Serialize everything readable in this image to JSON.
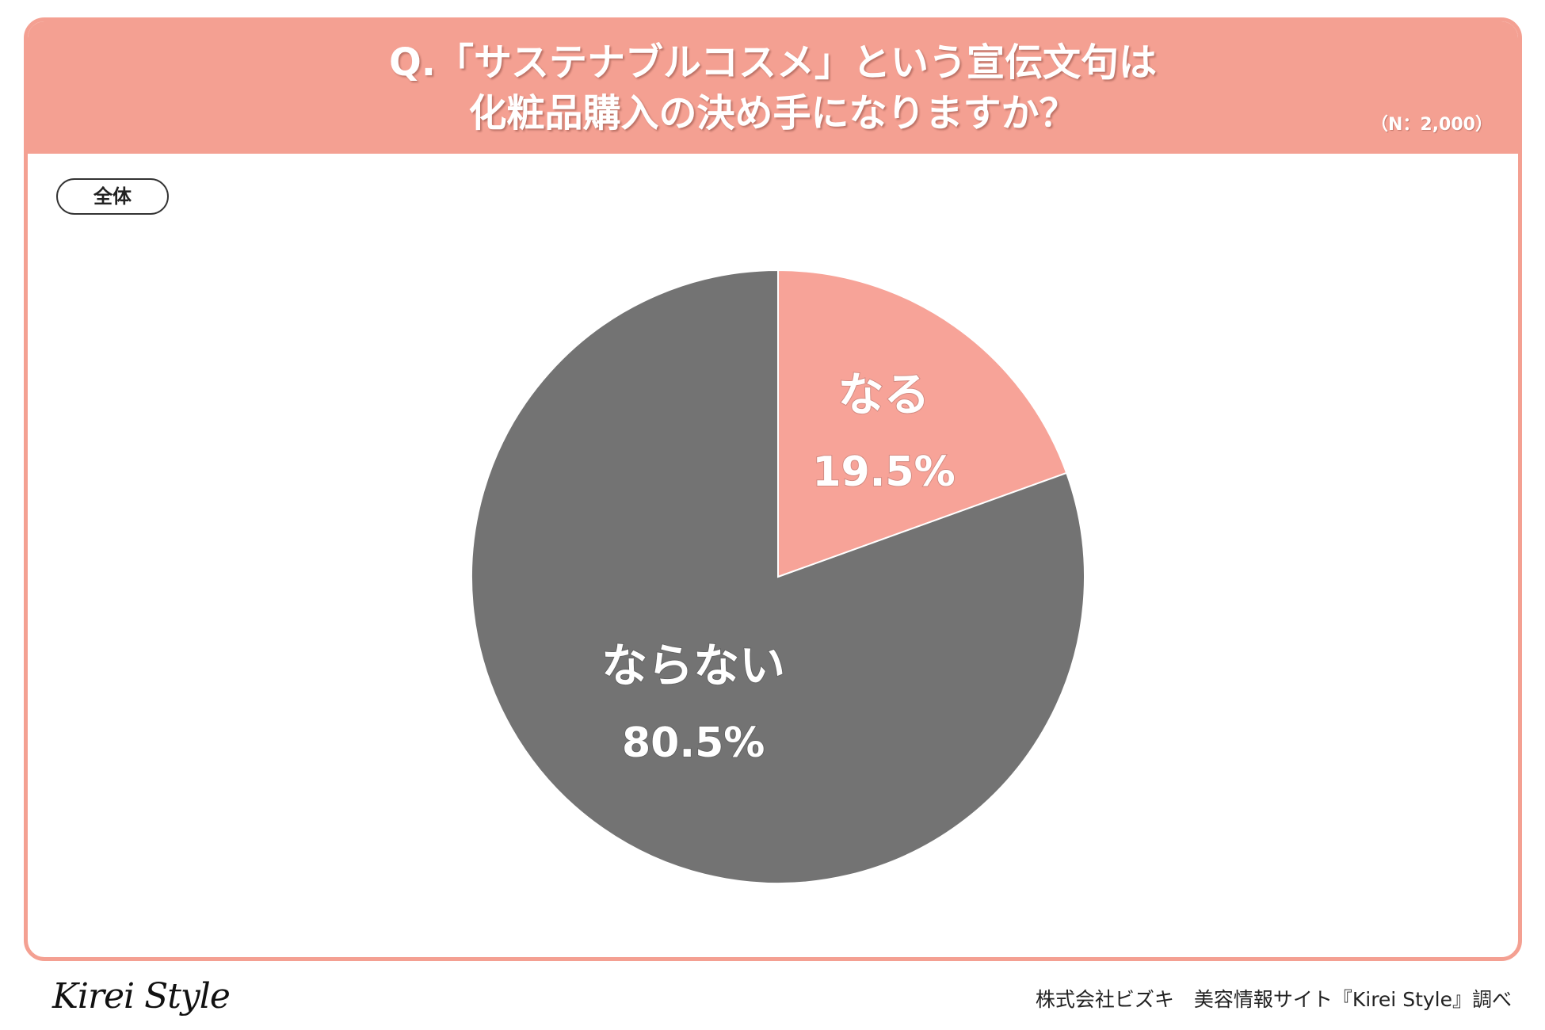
{
  "header": {
    "title_line1": "Q.「サステナブルコスメ」という宣伝文句は",
    "title_line2": "化粧品購入の決め手になりますか？",
    "sample_size": "（N：2,000）"
  },
  "segment_tag": "全体",
  "chart_data": {
    "type": "pie",
    "title": "Q.「サステナブルコスメ」という宣伝文句は化粧品購入の決め手になりますか？",
    "categories": [
      "なる",
      "ならない"
    ],
    "values": [
      19.5,
      80.5
    ],
    "value_labels": [
      "19.5%",
      "80.5%"
    ],
    "colors": [
      "#f7a398",
      "#737373"
    ],
    "start_angle": "12 o'clock, clockwise",
    "legend": "none (labels inside slices)"
  },
  "footer": {
    "logo": "Kirei Style",
    "credit": "株式会社ビズキ　美容情報サイト『Kirei Style』調べ"
  }
}
